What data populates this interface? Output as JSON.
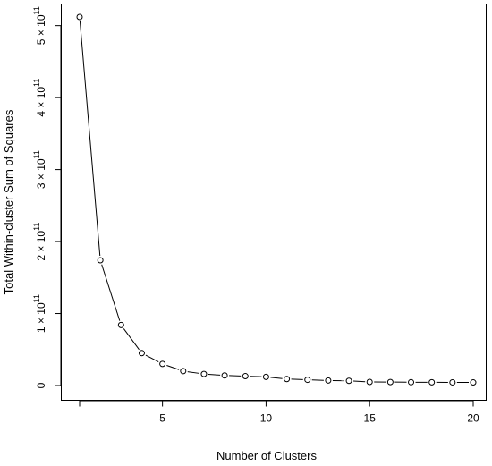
{
  "chart_data": {
    "type": "line",
    "xlabel": "Number of Clusters",
    "ylabel": "Total Within-cluster Sum of Squares",
    "x": [
      1,
      2,
      3,
      4,
      5,
      6,
      7,
      8,
      9,
      10,
      11,
      12,
      13,
      14,
      15,
      16,
      17,
      18,
      19,
      20
    ],
    "series": [
      {
        "values": [
          512000000000.0,
          174000000000.0,
          84000000000.0,
          45000000000.0,
          30000000000.0,
          20000000000.0,
          16000000000.0,
          14000000000.0,
          13000000000.0,
          12000000000.0,
          9000000000.0,
          8000000000.0,
          7000000000.0,
          6500000000.0,
          5000000000.0,
          4800000000.0,
          4600000000.0,
          4500000000.0,
          4400000000.0,
          4300000000.0
        ],
        "marker": "open-circle",
        "line_style": "solid"
      }
    ],
    "xlim": [
      1,
      20
    ],
    "ylim": [
      0,
      512000000000.0
    ],
    "x_ticks": [
      5,
      10,
      15,
      20
    ],
    "y_ticks": [
      {
        "value": 0,
        "mantissa": "0",
        "exponent": ""
      },
      {
        "value": 100000000000.0,
        "mantissa": "1 × 10",
        "exponent": "11"
      },
      {
        "value": 200000000000.0,
        "mantissa": "2 × 10",
        "exponent": "11"
      },
      {
        "value": 300000000000.0,
        "mantissa": "3 × 10",
        "exponent": "11"
      },
      {
        "value": 400000000000.0,
        "mantissa": "4 × 10",
        "exponent": "11"
      },
      {
        "value": 500000000000.0,
        "mantissa": "5 × 10",
        "exponent": "11"
      }
    ],
    "grid": false,
    "legend": "none"
  }
}
